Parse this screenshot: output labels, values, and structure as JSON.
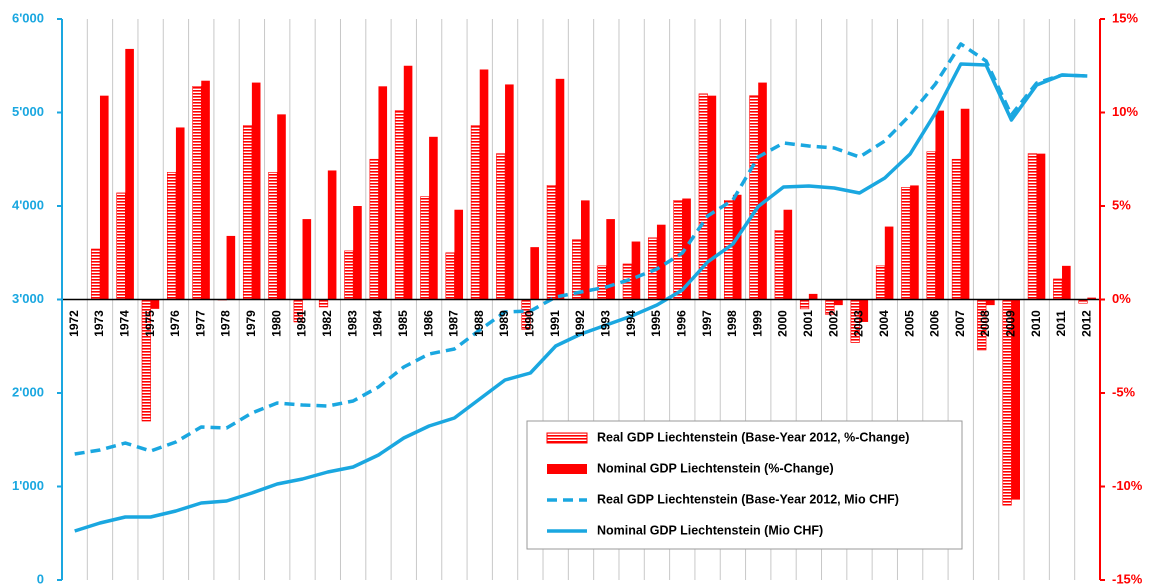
{
  "chart_data": {
    "type": "combo",
    "categories": [
      "1972",
      "1973",
      "1974",
      "1975",
      "1976",
      "1977",
      "1978",
      "1979",
      "1980",
      "1981",
      "1982",
      "1983",
      "1984",
      "1985",
      "1986",
      "1987",
      "1988",
      "1989",
      "1990",
      "1991",
      "1992",
      "1993",
      "1994",
      "1995",
      "1996",
      "1997",
      "1998",
      "1999",
      "2000",
      "2001",
      "2002",
      "2003",
      "2004",
      "2005",
      "2006",
      "2007",
      "2008",
      "2009",
      "2010",
      "2011",
      "2012"
    ],
    "ylim": [
      0,
      6000
    ],
    "yticks": [
      0,
      {
        "value": 1000,
        "label": "1'000"
      },
      {
        "value": 2000,
        "label": "2'000"
      },
      {
        "value": 3000,
        "label": "3'000"
      },
      {
        "value": 4000,
        "label": "4'000"
      },
      {
        "value": 5000,
        "label": "5'000"
      },
      {
        "value": 6000,
        "label": "6'000"
      }
    ],
    "y2lim": [
      -15,
      15
    ],
    "y2ticks": [
      {
        "value": -15,
        "label": "-15%"
      },
      {
        "value": -10,
        "label": "-10%"
      },
      {
        "value": -5,
        "label": "-5%"
      },
      {
        "value": 0,
        "label": "0%"
      },
      {
        "value": 5,
        "label": "5%"
      },
      {
        "value": 10,
        "label": "10%"
      },
      {
        "value": 15,
        "label": "15%"
      }
    ],
    "y_color": "#1aa7e0",
    "y2_color": "#ff0000",
    "series": [
      {
        "name": "Real GDP Liechtenstein (Base-Year 2012, %-Change)",
        "type": "bar",
        "style": "hatched",
        "axis": "y2",
        "color": "#ff0000",
        "values": [
          null,
          2.7,
          5.7,
          -6.5,
          6.8,
          11.4,
          0,
          9.3,
          6.8,
          -1.2,
          -0.4,
          2.6,
          7.5,
          10.1,
          5.5,
          2.5,
          9.3,
          7.8,
          -1.6,
          6.1,
          3.2,
          1.8,
          1.9,
          3.3,
          5.3,
          11.0,
          5.3,
          10.9,
          3.7,
          -0.5,
          -0.8,
          -2.3,
          1.8,
          6.0,
          7.9,
          7.5,
          -2.7,
          -11.0,
          7.8,
          1.1,
          -0.2
        ]
      },
      {
        "name": "Nominal GDP Liechtenstein (%-Change)",
        "type": "bar",
        "style": "solid",
        "axis": "y2",
        "color": "#ff0000",
        "values": [
          null,
          10.9,
          13.4,
          -0.5,
          9.2,
          11.7,
          3.4,
          11.6,
          9.9,
          4.3,
          6.9,
          5.0,
          11.4,
          12.5,
          8.7,
          4.8,
          12.3,
          11.5,
          2.8,
          11.8,
          5.3,
          4.3,
          3.1,
          4.0,
          5.4,
          10.9,
          5.6,
          11.6,
          4.8,
          0.3,
          -0.3,
          -1.2,
          3.9,
          6.1,
          10.1,
          10.2,
          -0.3,
          -10.7,
          7.8,
          1.8,
          0.1
        ]
      },
      {
        "name": "Real GDP Liechtenstein (Base-Year 2012, Mio CHF)",
        "type": "line",
        "style": "dashed",
        "color": "#1aa7e0",
        "values": [
          1348,
          1390,
          1465,
          1380,
          1476,
          1636,
          1626,
          1786,
          1893,
          1872,
          1861,
          1914,
          2064,
          2278,
          2417,
          2471,
          2674,
          2866,
          2877,
          3027,
          3080,
          3134,
          3219,
          3326,
          3497,
          3893,
          4064,
          4524,
          4674,
          4642,
          4620,
          4524,
          4695,
          4973,
          5305,
          5733,
          5551,
          4973,
          5316,
          5401,
          5390
        ]
      },
      {
        "name": "Nominal GDP Liechtenstein (Mio CHF)",
        "type": "line",
        "style": "solid",
        "color": "#1aa7e0",
        "values": [
          524,
          610,
          674,
          674,
          738,
          824,
          845,
          930,
          1027,
          1080,
          1155,
          1209,
          1337,
          1519,
          1647,
          1733,
          1936,
          2139,
          2214,
          2503,
          2631,
          2727,
          2824,
          2941,
          3102,
          3401,
          3594,
          3995,
          4203,
          4214,
          4193,
          4139,
          4299,
          4556,
          4995,
          5519,
          5508,
          4920,
          5294,
          5401,
          5390
        ]
      }
    ]
  }
}
